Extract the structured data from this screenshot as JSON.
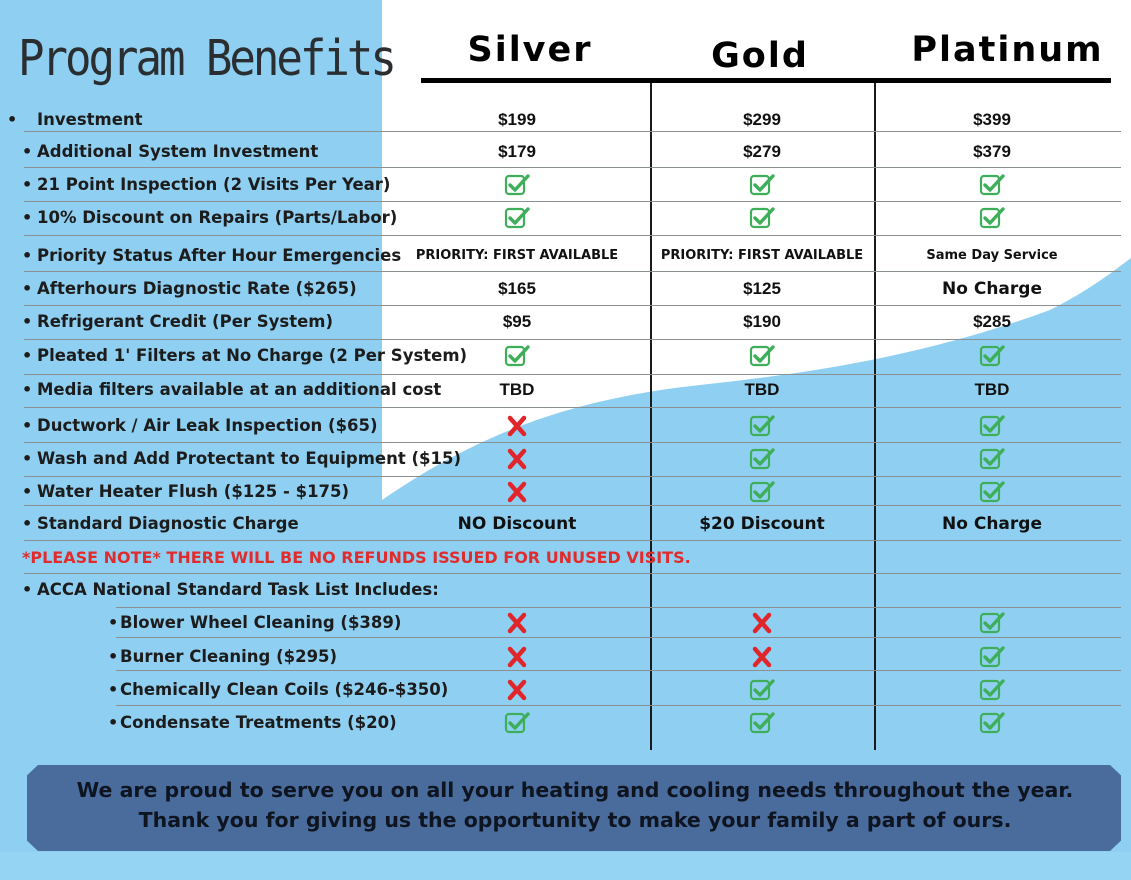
{
  "title": "Program Benefits",
  "tiers": [
    "Silver",
    "Gold",
    "Platinum"
  ],
  "rows": [
    {
      "label": "Investment",
      "indent": 0,
      "cells": [
        {
          "t": "price",
          "v": "$199"
        },
        {
          "t": "price",
          "v": "$299"
        },
        {
          "t": "price",
          "v": "$399"
        }
      ]
    },
    {
      "label": "Additional System Investment",
      "indent": 0,
      "cells": [
        {
          "t": "price",
          "v": "$179"
        },
        {
          "t": "price",
          "v": "$279"
        },
        {
          "t": "price",
          "v": "$379"
        }
      ]
    },
    {
      "label": "21 Point Inspection (2 Visits Per Year)",
      "indent": 0,
      "cells": [
        {
          "t": "check"
        },
        {
          "t": "check"
        },
        {
          "t": "check"
        }
      ]
    },
    {
      "label": "10% Discount on Repairs (Parts/Labor)",
      "indent": 0,
      "cells": [
        {
          "t": "check"
        },
        {
          "t": "check"
        },
        {
          "t": "check"
        }
      ]
    },
    {
      "label": "Priority Status After Hour Emergencies",
      "indent": 0,
      "cells": [
        {
          "t": "small",
          "v": "PRIORITY: FIRST AVAILABLE"
        },
        {
          "t": "small",
          "v": "PRIORITY: FIRST AVAILABLE"
        },
        {
          "t": "small",
          "v": "Same Day Service"
        }
      ]
    },
    {
      "label": "Afterhours Diagnostic Rate ($265)",
      "indent": 0,
      "cells": [
        {
          "t": "price",
          "v": "$165"
        },
        {
          "t": "price",
          "v": "$125"
        },
        {
          "t": "big",
          "v": "No Charge"
        }
      ]
    },
    {
      "label": "Refrigerant Credit (Per System)",
      "indent": 0,
      "cells": [
        {
          "t": "price",
          "v": "$95"
        },
        {
          "t": "price",
          "v": "$190"
        },
        {
          "t": "price",
          "v": "$285"
        }
      ]
    },
    {
      "label": "Pleated 1' Filters at No Charge (2 Per System)",
      "indent": 0,
      "cells": [
        {
          "t": "check"
        },
        {
          "t": "check"
        },
        {
          "t": "check"
        }
      ]
    },
    {
      "label": "Media filters available at an additional cost",
      "indent": 0,
      "cells": [
        {
          "t": "price",
          "v": "TBD"
        },
        {
          "t": "price",
          "v": "TBD"
        },
        {
          "t": "price",
          "v": "TBD"
        }
      ]
    },
    {
      "label": "Ductwork / Air Leak Inspection ($65)",
      "indent": 0,
      "cells": [
        {
          "t": "x"
        },
        {
          "t": "check"
        },
        {
          "t": "check"
        }
      ]
    },
    {
      "label": "Wash and Add Protectant to Equipment ($15)",
      "indent": 0,
      "cells": [
        {
          "t": "x"
        },
        {
          "t": "check"
        },
        {
          "t": "check"
        }
      ]
    },
    {
      "label": "Water Heater Flush ($125 - $175)",
      "indent": 0,
      "cells": [
        {
          "t": "x"
        },
        {
          "t": "check"
        },
        {
          "t": "check"
        }
      ]
    },
    {
      "label": "Standard Diagnostic Charge",
      "indent": 0,
      "cells": [
        {
          "t": "big",
          "v": "NO Discount"
        },
        {
          "t": "big",
          "v": "$20 Discount"
        },
        {
          "t": "big",
          "v": "No Charge"
        }
      ]
    },
    {
      "label": "",
      "indent": 0,
      "cells": []
    },
    {
      "label": "ACCA National Standard Task List Includes:",
      "indent": 0,
      "cells": []
    },
    {
      "label": "Blower Wheel Cleaning ($389)",
      "indent": 1,
      "cells": [
        {
          "t": "x"
        },
        {
          "t": "x"
        },
        {
          "t": "check"
        }
      ]
    },
    {
      "label": "Burner Cleaning ($295)",
      "indent": 1,
      "cells": [
        {
          "t": "x"
        },
        {
          "t": "x"
        },
        {
          "t": "check"
        }
      ]
    },
    {
      "label": "Chemically Clean Coils ($246-$350)",
      "indent": 1,
      "cells": [
        {
          "t": "x"
        },
        {
          "t": "check"
        },
        {
          "t": "check"
        }
      ]
    },
    {
      "label": "Condensate Treatments ($20)",
      "indent": 1,
      "cells": [
        {
          "t": "check"
        },
        {
          "t": "check"
        },
        {
          "t": "check"
        }
      ]
    }
  ],
  "note": "*PLEASE NOTE* THERE WILL BE NO REFUNDS ISSUED FOR UNUSED VISITS.",
  "banner": "We are proud to serve you on all your heating and cooling needs throughout the year. Thank you for giving us the opportunity to make your family a part of ours.",
  "colors": {
    "sky": "#8fd0f2",
    "wave": "#8fd0f2",
    "check": "#3fae5a",
    "x": "#e0262b",
    "banner": "#4a6c9c",
    "note": "#e02c2c"
  }
}
